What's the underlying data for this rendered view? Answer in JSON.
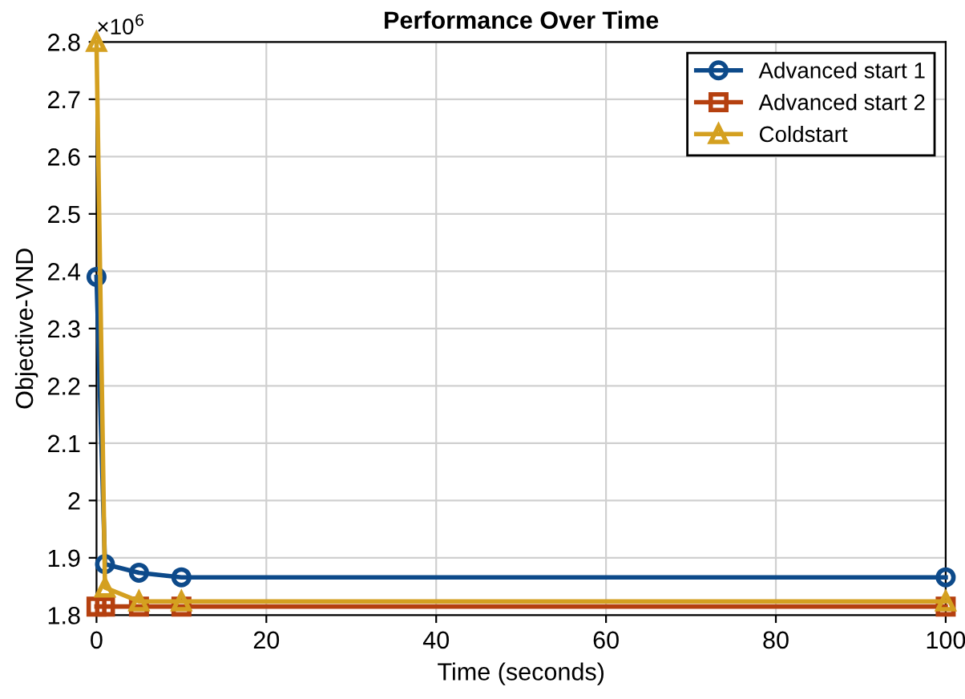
{
  "chart_data": {
    "type": "line",
    "title": "Performance Over Time",
    "xlabel": "Time (seconds)",
    "ylabel": "Objective-VND",
    "annotations": [
      "×10$^{6}$"
    ],
    "x": [
      0,
      1,
      5,
      10,
      100
    ],
    "series": [
      {
        "name": "Advanced start 1",
        "color": "#0d4a8a",
        "marker": "circle",
        "values": [
          2.39,
          1.889,
          1.874,
          1.866,
          1.866
        ]
      },
      {
        "name": "Advanced start 2",
        "color": "#b5400f",
        "marker": "square",
        "values": [
          1.815,
          1.815,
          1.815,
          1.815,
          1.815
        ]
      },
      {
        "name": "Coldstart",
        "color": "#d4a020",
        "marker": "triangle",
        "values": [
          2.8,
          1.848,
          1.824,
          1.824,
          1.824
        ]
      }
    ],
    "xlim": [
      0,
      100
    ],
    "xticks": [
      0,
      20,
      40,
      60,
      80,
      100
    ],
    "ylim": [
      1.8,
      2.8
    ],
    "yticks": [
      1.8,
      1.9,
      2,
      2.1,
      2.2,
      2.3,
      2.4,
      2.5,
      2.6,
      2.7,
      2.8
    ],
    "grid": true,
    "legend": "top right",
    "line_style": "solid"
  }
}
